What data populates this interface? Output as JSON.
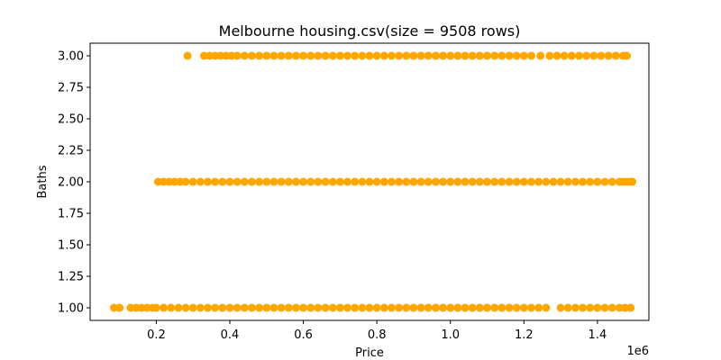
{
  "chart_data": {
    "type": "scatter",
    "title": "Melbourne housing.csv(size = 9508 rows)",
    "xlabel": "Price",
    "ylabel": "Baths",
    "x_offset_label": "1e6",
    "xlim": [
      0.02,
      1.54
    ],
    "ylim": [
      0.9,
      3.1
    ],
    "xticks": [
      0.2,
      0.4,
      0.6,
      0.8,
      1.0,
      1.2,
      1.4
    ],
    "xtick_labels": [
      "0.2",
      "0.4",
      "0.6",
      "0.8",
      "1.0",
      "1.2",
      "1.4"
    ],
    "yticks": [
      1.0,
      1.25,
      1.5,
      1.75,
      2.0,
      2.25,
      2.5,
      2.75,
      3.0
    ],
    "ytick_labels": [
      "1.00",
      "1.25",
      "1.50",
      "1.75",
      "2.00",
      "2.25",
      "2.50",
      "2.75",
      "3.00"
    ],
    "grid": false,
    "marker_color": "#ffa500",
    "series": [
      {
        "baths": 3,
        "points": [
          0.285,
          0.33,
          0.345,
          0.36,
          0.375,
          0.39,
          0.405,
          0.42,
          0.44,
          0.46,
          0.48,
          0.5,
          0.52,
          0.54,
          0.56,
          0.58,
          0.6,
          0.62,
          0.64,
          0.66,
          0.68,
          0.7,
          0.72,
          0.74,
          0.76,
          0.78,
          0.8,
          0.82,
          0.84,
          0.86,
          0.88,
          0.9,
          0.92,
          0.94,
          0.96,
          0.98,
          1.0,
          1.02,
          1.04,
          1.06,
          1.08,
          1.1,
          1.12,
          1.14,
          1.16,
          1.18,
          1.2,
          1.22,
          1.245,
          1.27,
          1.29,
          1.31,
          1.33,
          1.35,
          1.37,
          1.39,
          1.41,
          1.43,
          1.45,
          1.47,
          1.48
        ]
      },
      {
        "baths": 2,
        "points": [
          0.205,
          0.22,
          0.235,
          0.25,
          0.265,
          0.28,
          0.3,
          0.32,
          0.34,
          0.36,
          0.38,
          0.4,
          0.42,
          0.44,
          0.46,
          0.48,
          0.5,
          0.52,
          0.54,
          0.56,
          0.58,
          0.6,
          0.62,
          0.64,
          0.66,
          0.68,
          0.7,
          0.72,
          0.74,
          0.76,
          0.78,
          0.8,
          0.82,
          0.84,
          0.86,
          0.88,
          0.9,
          0.92,
          0.94,
          0.96,
          0.98,
          1.0,
          1.02,
          1.04,
          1.06,
          1.08,
          1.1,
          1.12,
          1.14,
          1.16,
          1.18,
          1.2,
          1.22,
          1.24,
          1.26,
          1.28,
          1.3,
          1.32,
          1.34,
          1.36,
          1.38,
          1.4,
          1.42,
          1.44,
          1.46,
          1.47,
          1.48,
          1.49,
          1.495
        ]
      },
      {
        "baths": 1,
        "points": [
          0.085,
          0.1,
          0.13,
          0.145,
          0.16,
          0.175,
          0.19,
          0.2,
          0.22,
          0.24,
          0.26,
          0.28,
          0.3,
          0.32,
          0.34,
          0.36,
          0.38,
          0.4,
          0.42,
          0.44,
          0.46,
          0.48,
          0.5,
          0.52,
          0.54,
          0.56,
          0.58,
          0.6,
          0.62,
          0.64,
          0.66,
          0.68,
          0.7,
          0.72,
          0.74,
          0.76,
          0.78,
          0.8,
          0.82,
          0.84,
          0.86,
          0.88,
          0.9,
          0.92,
          0.94,
          0.96,
          0.98,
          1.0,
          1.02,
          1.04,
          1.06,
          1.08,
          1.1,
          1.12,
          1.14,
          1.16,
          1.18,
          1.2,
          1.22,
          1.24,
          1.26,
          1.3,
          1.32,
          1.34,
          1.36,
          1.38,
          1.4,
          1.42,
          1.44,
          1.46,
          1.475,
          1.49
        ]
      }
    ]
  }
}
